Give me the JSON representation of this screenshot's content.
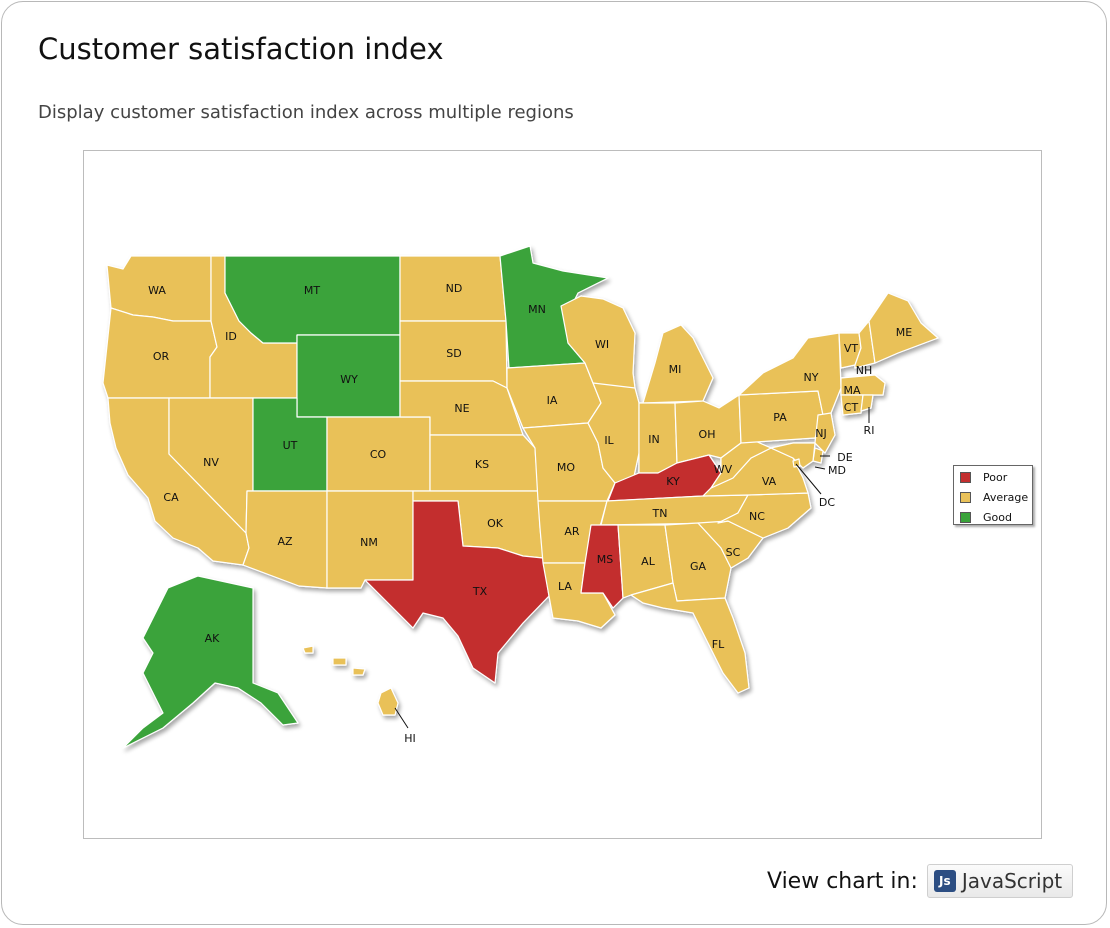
{
  "header": {
    "title": "Customer satisfaction index",
    "subtitle": "Display customer satisfaction index across multiple regions"
  },
  "colors": {
    "Poor": "#c32f2f",
    "Average": "#e9c159",
    "Good": "#3aa33a",
    "border": "#ffffff"
  },
  "legend": {
    "items": [
      {
        "label": "Poor",
        "color": "#c32f2f"
      },
      {
        "label": "Average",
        "color": "#e9c159"
      },
      {
        "label": "Good",
        "color": "#3aa33a"
      }
    ]
  },
  "map": {
    "states": [
      {
        "id": "WA",
        "label": "WA",
        "rating": "Average"
      },
      {
        "id": "OR",
        "label": "OR",
        "rating": "Average"
      },
      {
        "id": "CA",
        "label": "CA",
        "rating": "Average"
      },
      {
        "id": "ID",
        "label": "ID",
        "rating": "Average"
      },
      {
        "id": "NV",
        "label": "NV",
        "rating": "Average"
      },
      {
        "id": "MT",
        "label": "MT",
        "rating": "Good"
      },
      {
        "id": "WY",
        "label": "WY",
        "rating": "Good"
      },
      {
        "id": "UT",
        "label": "UT",
        "rating": "Good"
      },
      {
        "id": "AZ",
        "label": "AZ",
        "rating": "Average"
      },
      {
        "id": "CO",
        "label": "CO",
        "rating": "Average"
      },
      {
        "id": "NM",
        "label": "NM",
        "rating": "Average"
      },
      {
        "id": "ND",
        "label": "ND",
        "rating": "Average"
      },
      {
        "id": "SD",
        "label": "SD",
        "rating": "Average"
      },
      {
        "id": "NE",
        "label": "NE",
        "rating": "Average"
      },
      {
        "id": "KS",
        "label": "KS",
        "rating": "Average"
      },
      {
        "id": "OK",
        "label": "OK",
        "rating": "Average"
      },
      {
        "id": "TX",
        "label": "TX",
        "rating": "Poor"
      },
      {
        "id": "MN",
        "label": "MN",
        "rating": "Good"
      },
      {
        "id": "IA",
        "label": "IA",
        "rating": "Average"
      },
      {
        "id": "MO",
        "label": "MO",
        "rating": "Average"
      },
      {
        "id": "AR",
        "label": "AR",
        "rating": "Average"
      },
      {
        "id": "LA",
        "label": "LA",
        "rating": "Average"
      },
      {
        "id": "WI",
        "label": "WI",
        "rating": "Average"
      },
      {
        "id": "IL",
        "label": "IL",
        "rating": "Average"
      },
      {
        "id": "MI",
        "label": "MI",
        "rating": "Average"
      },
      {
        "id": "IN",
        "label": "IN",
        "rating": "Average"
      },
      {
        "id": "OH",
        "label": "OH",
        "rating": "Average"
      },
      {
        "id": "KY",
        "label": "KY",
        "rating": "Poor"
      },
      {
        "id": "TN",
        "label": "TN",
        "rating": "Average"
      },
      {
        "id": "MS",
        "label": "MS",
        "rating": "Poor"
      },
      {
        "id": "AL",
        "label": "AL",
        "rating": "Average"
      },
      {
        "id": "GA",
        "label": "GA",
        "rating": "Average"
      },
      {
        "id": "FL",
        "label": "FL",
        "rating": "Average"
      },
      {
        "id": "SC",
        "label": "SC",
        "rating": "Average"
      },
      {
        "id": "NC",
        "label": "NC",
        "rating": "Average"
      },
      {
        "id": "VA",
        "label": "VA",
        "rating": "Average"
      },
      {
        "id": "WV",
        "label": "WV",
        "rating": "Average"
      },
      {
        "id": "PA",
        "label": "PA",
        "rating": "Average"
      },
      {
        "id": "NY",
        "label": "NY",
        "rating": "Average"
      },
      {
        "id": "VT",
        "label": "VT",
        "rating": "Average"
      },
      {
        "id": "NH",
        "label": "NH",
        "rating": "Average"
      },
      {
        "id": "ME",
        "label": "ME",
        "rating": "Average"
      },
      {
        "id": "MA",
        "label": "MA",
        "rating": "Average"
      },
      {
        "id": "CT",
        "label": "CT",
        "rating": "Average"
      },
      {
        "id": "RI",
        "label": "RI",
        "rating": "Average"
      },
      {
        "id": "NJ",
        "label": "NJ",
        "rating": "Average"
      },
      {
        "id": "DE",
        "label": "DE",
        "rating": "Average"
      },
      {
        "id": "MD",
        "label": "MD",
        "rating": "Average"
      },
      {
        "id": "DC",
        "label": "DC",
        "rating": "Average"
      },
      {
        "id": "AK",
        "label": "AK",
        "rating": "Good"
      },
      {
        "id": "HI",
        "label": "HI",
        "rating": "Average"
      }
    ]
  },
  "footer": {
    "view_label": "View chart in:",
    "js_icon": "Js",
    "js_label": "JavaScript"
  }
}
